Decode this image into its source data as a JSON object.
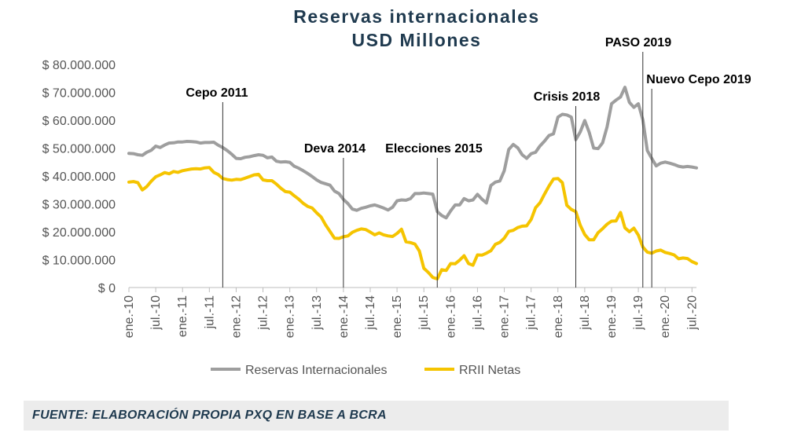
{
  "chart_data": {
    "type": "line",
    "title": "Reservas internacionales",
    "subtitle": "USD Millones",
    "ylim": [
      0,
      80000000
    ],
    "y_ticks": [
      "$ 80.000.000",
      "$ 70.000.000",
      "$ 60.000.000",
      "$ 50.000.000",
      "$ 40.000.000",
      "$ 30.000.000",
      "$ 20.000.000",
      "$ 10.000.000",
      "$ 0"
    ],
    "y_tick_values": [
      80000000,
      70000000,
      60000000,
      50000000,
      40000000,
      30000000,
      20000000,
      10000000,
      0
    ],
    "x_ticks": [
      "ene.-10",
      "jul.-10",
      "ene.-11",
      "jul.-11",
      "ene.-12",
      "jul.-12",
      "ene.-13",
      "jul.-13",
      "ene.-14",
      "jul.-14",
      "ene.-15",
      "jul.-15",
      "ene.-16",
      "jul.-16",
      "ene.-17",
      "jul.-17",
      "ene.-18",
      "jul.-18",
      "ene.-19",
      "jul.-19",
      "ene.-20",
      "jul.-20"
    ],
    "x_start": "2010-01",
    "grid": false,
    "legend": "bottom",
    "series": [
      {
        "name": "Reservas Internacionales",
        "color": "#9e9e9e",
        "values": [
          48.1,
          48,
          47.6,
          47.4,
          48.5,
          49.2,
          50.7,
          50.2,
          51.1,
          51.8,
          51.9,
          52.2,
          52.2,
          52.4,
          52.3,
          52.2,
          51.8,
          52,
          52,
          52.1,
          51,
          50.2,
          49.1,
          47.8,
          46.3,
          46.2,
          46.7,
          46.9,
          47.3,
          47.6,
          47.4,
          46.5,
          46.8,
          45.3,
          45,
          45.1,
          44.9,
          43.5,
          42.8,
          41.9,
          40.9,
          39.8,
          38.6,
          37.7,
          37.2,
          36.7,
          34.6,
          33.7,
          31.6,
          30.1,
          28.1,
          27.7,
          28.4,
          28.8,
          29.3,
          29.6,
          29.1,
          28.5,
          27.8,
          28.8,
          31.1,
          31.4,
          31.3,
          31.9,
          33.7,
          33.7,
          33.9,
          33.7,
          33.5,
          27.2,
          25.8,
          25,
          27.5,
          29.6,
          29.6,
          31.9,
          31.1,
          31.4,
          33.4,
          31.7,
          30.3,
          36.6,
          37.8,
          38.2,
          41.9,
          49.5,
          51.3,
          50.1,
          47.6,
          46.3,
          48,
          48.5,
          50.8,
          52.5,
          54.5,
          55.1,
          61.1,
          62.1,
          61.9,
          61.1,
          53,
          55.8,
          59.9,
          55.6,
          50,
          49.8,
          51.9,
          57.6,
          65.9,
          67.2,
          68.3,
          71.8,
          66.4,
          64.6,
          65.9,
          60.1,
          49.1,
          46.3,
          43.6,
          44.6,
          45,
          44.6,
          44.1,
          43.5,
          43.2,
          43.4,
          43.2,
          42.9
        ]
      },
      {
        "name": "RRII Netas",
        "color": "#f5c400",
        "values": [
          37.8,
          38,
          37.6,
          35,
          36.2,
          38.1,
          39.7,
          40.4,
          41.2,
          40.8,
          41.6,
          41.3,
          41.9,
          42.2,
          42.5,
          42.6,
          42.5,
          42.9,
          43,
          41.3,
          40.5,
          39.1,
          38.7,
          38.5,
          38.8,
          38.7,
          39.2,
          39.8,
          40.4,
          40.6,
          38.6,
          38.3,
          38.3,
          37.1,
          35.6,
          34.4,
          34.2,
          32.9,
          31.7,
          30.2,
          29.1,
          28.5,
          26.8,
          25.3,
          22.5,
          20.1,
          17.7,
          17.6,
          18.2,
          18.5,
          19.8,
          20.5,
          21,
          20.8,
          19.9,
          18.9,
          19.6,
          18.9,
          18.5,
          18.3,
          19.4,
          20.9,
          16.4,
          16.1,
          15.6,
          13.1,
          6.9,
          5.4,
          3.6,
          3.1,
          6.4,
          6.1,
          8.6,
          8.5,
          9.8,
          11.4,
          8.6,
          8,
          11.7,
          11.6,
          12.3,
          13.2,
          15.5,
          16.2,
          17.7,
          20.1,
          20.5,
          21.5,
          22,
          22.1,
          24.4,
          28.6,
          30.4,
          33.5,
          36.4,
          38.9,
          39.1,
          37.6,
          29.5,
          28,
          27.2,
          22.3,
          19,
          17.1,
          17.1,
          19.7,
          21.1,
          22.7,
          23.8,
          23.9,
          26.9,
          21.4,
          20,
          21.3,
          18.8,
          14.5,
          12.7,
          12.3,
          13.1,
          13.4,
          12.6,
          12.2,
          11.7,
          10.3,
          10.6,
          10.4,
          9.3,
          8.6
        ]
      }
    ],
    "annotations": [
      {
        "label": "Cepo 2011",
        "x": "2011-10"
      },
      {
        "label": "Deva 2014",
        "x": "2014-01"
      },
      {
        "label": "Elecciones 2015",
        "x": "2015-10"
      },
      {
        "label": "Crisis 2018",
        "x": "2018-05"
      },
      {
        "label": "PASO 2019",
        "x": "2019-08"
      },
      {
        "label": "Nuevo Cepo 2019",
        "x": "2019-10"
      }
    ]
  },
  "source_text": "FUENTE: ELABORACIÓN PROPIA PXQ EN BASE A BCRA"
}
